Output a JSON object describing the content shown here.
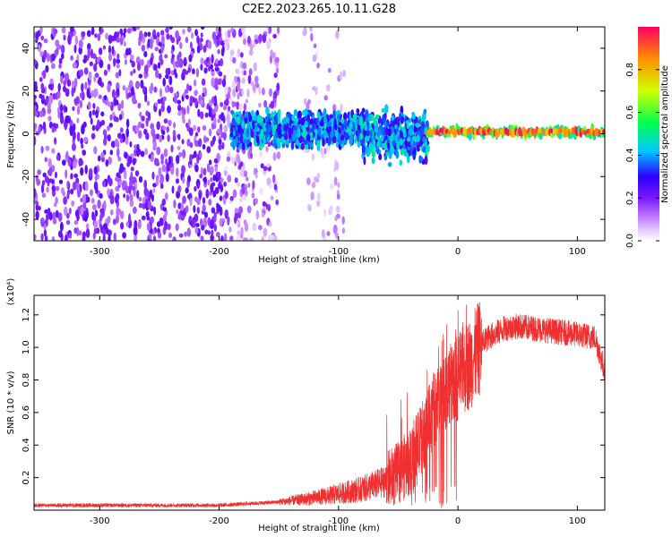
{
  "figure_title": "C2E2.2023.265.10.11.G28",
  "colors": {
    "snr_line": "#f03030",
    "colormap": [
      "#ffffff",
      "#e4c8ff",
      "#b870ff",
      "#7a18ff",
      "#2a00ff",
      "#00c8ff",
      "#00ff50",
      "#d0ff00",
      "#ff9000",
      "#ff0060"
    ]
  },
  "chart_data": [
    {
      "type": "heatmap",
      "title": "",
      "xlabel": "Height of straight line (km)",
      "ylabel": "Frequency (Hz)",
      "xlim": [
        -355,
        123
      ],
      "ylim": [
        -50,
        50
      ],
      "xticks": [
        -300,
        -200,
        -100,
        0,
        100
      ],
      "yticks": [
        -40,
        -20,
        0,
        20,
        40
      ],
      "colorbar": {
        "label": "Normalized spectral amplitude",
        "range": [
          0,
          1
        ],
        "ticks": [
          0.0,
          0.2,
          0.4,
          0.6,
          0.8
        ]
      },
      "regions": [
        {
          "x": [
            -355,
            -195
          ],
          "freq": [
            -50,
            50
          ],
          "amplitude": [
            0.1,
            0.25
          ],
          "pattern": "scattered"
        },
        {
          "x": [
            -195,
            -150
          ],
          "freq": [
            -50,
            50
          ],
          "amplitude": [
            0.02,
            0.2
          ],
          "pattern": "faint"
        },
        {
          "x": [
            -190,
            -25
          ],
          "freq": [
            -20,
            10
          ],
          "amplitude": [
            0.3,
            0.55
          ],
          "pattern": "band"
        },
        {
          "x": [
            -25,
            123
          ],
          "freq": [
            -2,
            4
          ],
          "amplitude": [
            0.6,
            1.0
          ],
          "pattern": "narrow_line",
          "center_freq": 1
        }
      ]
    },
    {
      "type": "line",
      "title": "",
      "xlabel": "Height of straight line (km)",
      "ylabel": "SNR (10 * v/v)",
      "y_multiplier": "(x10⁴)",
      "xlim": [
        -355,
        123
      ],
      "ylim": [
        0,
        1.32
      ],
      "xticks": [
        -300,
        -200,
        -100,
        0,
        100
      ],
      "yticks": [
        0.2,
        0.4,
        0.6,
        0.8,
        1.0,
        1.2
      ],
      "series": [
        {
          "x": [
            -355,
            -300,
            -250,
            -200,
            -175,
            -150,
            -125,
            -100,
            -80,
            -60,
            -50,
            -40,
            -30,
            -20,
            -15,
            -10,
            -5,
            0,
            10,
            20,
            25,
            30,
            40,
            50,
            60,
            80,
            100,
            115,
            123
          ],
          "y": [
            0.03,
            0.03,
            0.03,
            0.03,
            0.04,
            0.05,
            0.07,
            0.1,
            0.13,
            0.18,
            0.23,
            0.3,
            0.45,
            0.62,
            0.7,
            0.75,
            0.78,
            0.82,
            0.9,
            1.02,
            1.06,
            1.08,
            1.12,
            1.13,
            1.12,
            1.1,
            1.08,
            1.06,
            0.85
          ]
        }
      ]
    }
  ]
}
